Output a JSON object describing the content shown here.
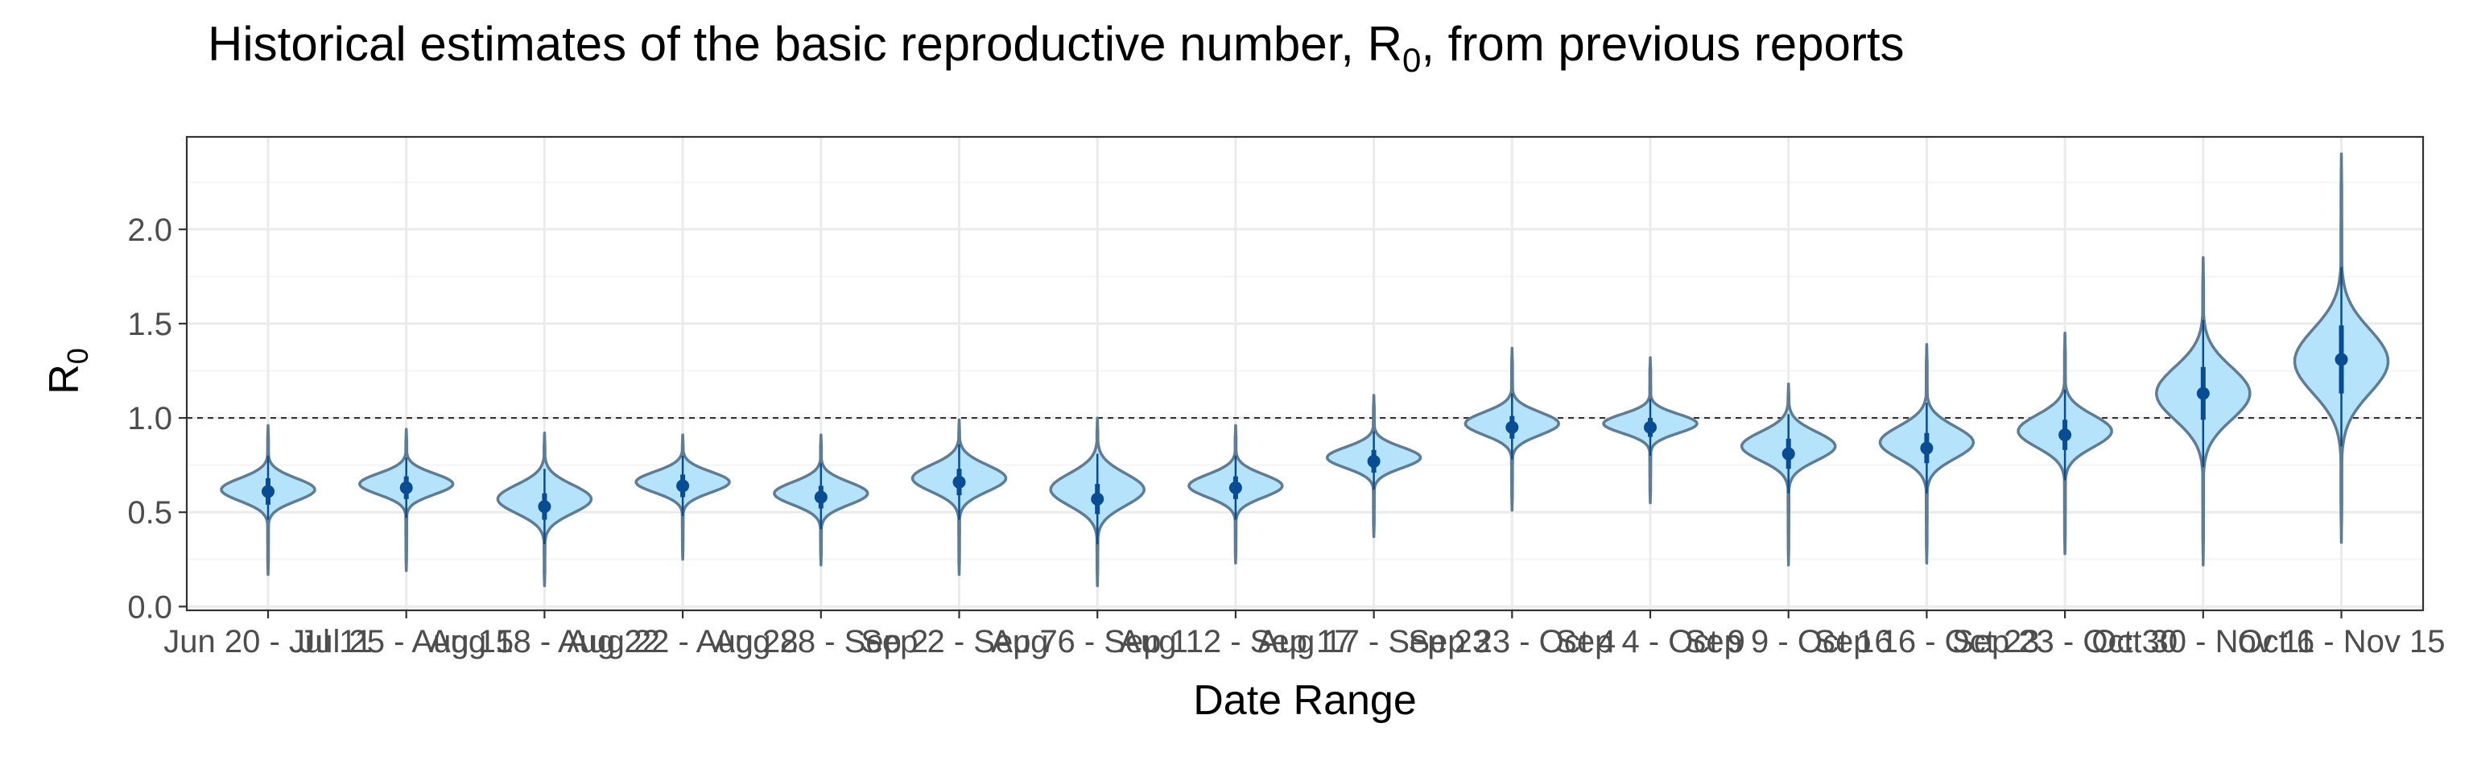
{
  "chart_data": {
    "type": "violin",
    "title": "Historical estimates of the basic reproductive number, R",
    "title_subscript": "0",
    "title_suffix": ", from previous reports",
    "xlabel": "Date Range",
    "ylabel": "R",
    "ylabel_subscript": "0",
    "ylim": [
      -0.02,
      2.49
    ],
    "yticks": [
      0.0,
      0.5,
      1.0,
      1.5,
      2.0
    ],
    "ytick_labels": [
      "0.0",
      "0.5",
      "1.0",
      "1.5",
      "2.0"
    ],
    "reference_line": 1.0,
    "grid": true,
    "categories": [
      "Jun 20 - Jul 11",
      "Jul 25 - Aug 15",
      "Aug 18 - Aug 22",
      "Aug 22 - Aug 28",
      "Aug 28 - Sep 2",
      "Sep 2 - Sep 7",
      "Aug 6 - Sep 11",
      "Aug 12 - Sep 17",
      "Aug 17 - Sep 23",
      "Sep 23 - Oct 4",
      "Sep 4 - Oct 9",
      "Sep 9 - Oct 16",
      "Sep 16 - Oct 23",
      "Sep 23 - Oct 30",
      "Oct 30 - Nov 11",
      "Oct 6 - Nov 15"
    ],
    "series": [
      {
        "median": 0.61,
        "iqr": [
          0.54,
          0.68
        ],
        "ci95": [
          0.46,
          0.8
        ],
        "min": 0.17,
        "max": 0.96,
        "mode": 0.62,
        "spread": 0.06
      },
      {
        "median": 0.63,
        "iqr": [
          0.57,
          0.69
        ],
        "ci95": [
          0.47,
          0.79
        ],
        "min": 0.19,
        "max": 0.94,
        "mode": 0.65,
        "spread": 0.055
      },
      {
        "median": 0.53,
        "iqr": [
          0.46,
          0.6
        ],
        "ci95": [
          0.33,
          0.73
        ],
        "min": 0.11,
        "max": 0.92,
        "mode": 0.57,
        "spread": 0.075
      },
      {
        "median": 0.64,
        "iqr": [
          0.58,
          0.7
        ],
        "ci95": [
          0.48,
          0.8
        ],
        "min": 0.25,
        "max": 0.91,
        "mode": 0.66,
        "spread": 0.055
      },
      {
        "median": 0.58,
        "iqr": [
          0.52,
          0.64
        ],
        "ci95": [
          0.41,
          0.76
        ],
        "min": 0.22,
        "max": 0.91,
        "mode": 0.6,
        "spread": 0.06
      },
      {
        "median": 0.66,
        "iqr": [
          0.59,
          0.73
        ],
        "ci95": [
          0.46,
          0.86
        ],
        "min": 0.17,
        "max": 0.99,
        "mode": 0.68,
        "spread": 0.07
      },
      {
        "median": 0.57,
        "iqr": [
          0.49,
          0.65
        ],
        "ci95": [
          0.33,
          0.81
        ],
        "min": 0.11,
        "max": 1.0,
        "mode": 0.62,
        "spread": 0.085
      },
      {
        "median": 0.63,
        "iqr": [
          0.57,
          0.69
        ],
        "ci95": [
          0.46,
          0.8
        ],
        "min": 0.23,
        "max": 0.96,
        "mode": 0.64,
        "spread": 0.06
      },
      {
        "median": 0.77,
        "iqr": [
          0.71,
          0.83
        ],
        "ci95": [
          0.62,
          0.93
        ],
        "min": 0.37,
        "max": 1.12,
        "mode": 0.79,
        "spread": 0.055
      },
      {
        "median": 0.95,
        "iqr": [
          0.89,
          1.01
        ],
        "ci95": [
          0.78,
          1.13
        ],
        "min": 0.51,
        "max": 1.37,
        "mode": 0.97,
        "spread": 0.06
      },
      {
        "median": 0.95,
        "iqr": [
          0.9,
          1.0
        ],
        "ci95": [
          0.8,
          1.1
        ],
        "min": 0.55,
        "max": 1.32,
        "mode": 0.97,
        "spread": 0.05
      },
      {
        "median": 0.81,
        "iqr": [
          0.73,
          0.89
        ],
        "ci95": [
          0.6,
          1.02
        ],
        "min": 0.22,
        "max": 1.18,
        "mode": 0.85,
        "spread": 0.075
      },
      {
        "median": 0.84,
        "iqr": [
          0.76,
          0.92
        ],
        "ci95": [
          0.6,
          1.08
        ],
        "min": 0.23,
        "max": 1.39,
        "mode": 0.87,
        "spread": 0.085
      },
      {
        "median": 0.91,
        "iqr": [
          0.83,
          0.99
        ],
        "ci95": [
          0.67,
          1.15
        ],
        "min": 0.28,
        "max": 1.45,
        "mode": 0.93,
        "spread": 0.085
      },
      {
        "median": 1.13,
        "iqr": [
          0.99,
          1.27
        ],
        "ci95": [
          0.74,
          1.52
        ],
        "min": 0.22,
        "max": 1.85,
        "mode": 1.13,
        "spread": 0.14
      },
      {
        "median": 1.31,
        "iqr": [
          1.13,
          1.49
        ],
        "ci95": [
          0.85,
          1.8
        ],
        "min": 0.34,
        "max": 2.4,
        "mode": 1.3,
        "spread": 0.17
      }
    ],
    "colors": {
      "violin_fill": "#b5e3fb",
      "violin_stroke": "#5e7c93",
      "median_point": "#084c94",
      "interval_line": "#084c94",
      "reference_line": "#333333",
      "panel_border": "#333333",
      "grid_major": "#ebebeb",
      "grid_minor": "#f5f5f5",
      "axis_text": "#4d4d4d",
      "title_text": "#000000"
    }
  }
}
